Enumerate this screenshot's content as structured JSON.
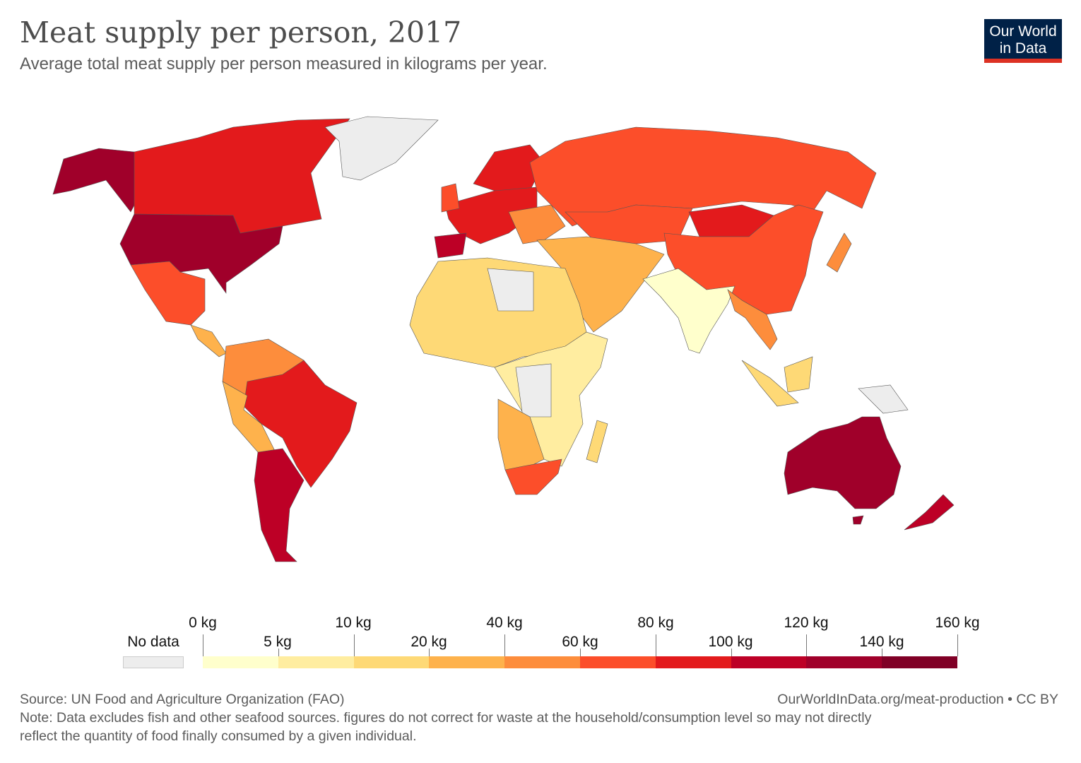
{
  "header": {
    "title": "Meat supply per person, 2017",
    "subtitle": "Average total meat supply per person measured in kilograms per year.",
    "logo_line1": "Our World",
    "logo_line2": "in Data"
  },
  "legend": {
    "no_data_label": "No data",
    "no_data_color": "#ededed",
    "upper_labels": [
      "0 kg",
      "10 kg",
      "40 kg",
      "80 kg",
      "120 kg",
      "160 kg"
    ],
    "lower_labels": [
      "5 kg",
      "20 kg",
      "60 kg",
      "100 kg",
      "140 kg"
    ],
    "bins": [
      {
        "min": 0,
        "max": 5,
        "color": "#ffffcc"
      },
      {
        "min": 5,
        "max": 10,
        "color": "#ffeda0"
      },
      {
        "min": 10,
        "max": 20,
        "color": "#fed976"
      },
      {
        "min": 20,
        "max": 40,
        "color": "#feb24c"
      },
      {
        "min": 40,
        "max": 60,
        "color": "#fd8d3c"
      },
      {
        "min": 60,
        "max": 80,
        "color": "#fc4e2a"
      },
      {
        "min": 80,
        "max": 100,
        "color": "#e31a1c"
      },
      {
        "min": 100,
        "max": 120,
        "color": "#bd0026"
      },
      {
        "min": 120,
        "max": 140,
        "color": "#a0002a"
      },
      {
        "min": 140,
        "max": 160,
        "color": "#800026"
      }
    ]
  },
  "footer": {
    "source": "Source: UN Food and Agriculture Organization (FAO)",
    "link": "OurWorldInData.org/meat-production • CC BY",
    "note_line1": "Note: Data excludes fish and other seafood sources. figures do not correct for waste at the household/consumption level so may not directly",
    "note_line2": "reflect the quantity of food finally consumed by a given individual."
  }
}
